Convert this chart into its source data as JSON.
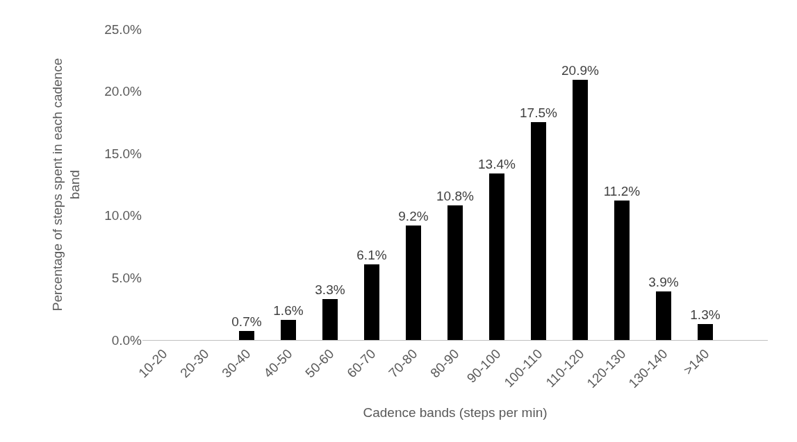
{
  "chart_data": {
    "type": "bar",
    "xlabel": "Cadence bands (steps per min)",
    "ylabel": "Percentage of steps spent in each cadence band",
    "categories": [
      "10-20",
      "20-30",
      "30-40",
      "40-50",
      "50-60",
      "60-70",
      "70-80",
      "80-90",
      "90-100",
      "100-110",
      "110-120",
      "120-130",
      "130-140",
      ">140",
      null
    ],
    "values": [
      0,
      0,
      0.7,
      1.6,
      3.3,
      6.1,
      9.2,
      10.8,
      13.4,
      17.5,
      20.9,
      11.2,
      3.9,
      1.3,
      null
    ],
    "value_labels": [
      null,
      null,
      "0.7%",
      "1.6%",
      "3.3%",
      "6.1%",
      "9.2%",
      "10.8%",
      "13.4%",
      "17.5%",
      "20.9%",
      "11.2%",
      "3.9%",
      "1.3%",
      null
    ],
    "color": "#000000",
    "ylim": [
      0,
      25
    ],
    "yticks": [
      {
        "value": 0,
        "label": "0.0%"
      },
      {
        "value": 5,
        "label": "5.0%"
      },
      {
        "value": 10,
        "label": "10.0%"
      },
      {
        "value": 15,
        "label": "15.0%"
      },
      {
        "value": 20,
        "label": "20.0%"
      },
      {
        "value": 25,
        "label": "25.0%"
      }
    ],
    "grid": false
  }
}
